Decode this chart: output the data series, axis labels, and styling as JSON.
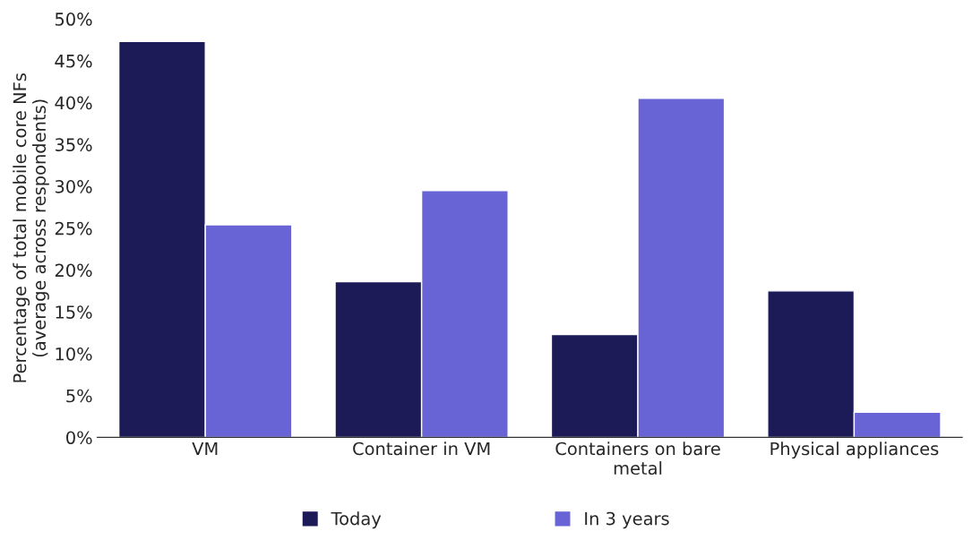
{
  "chart_data": {
    "type": "bar",
    "ylabel": "Percentage of total mobile core NFs\n(average across respondents)",
    "categories": [
      "VM",
      "Container in VM",
      "Containers on bare\nmetal",
      "Physical appliances"
    ],
    "series": [
      {
        "name": "Today",
        "color": "#1c1a57",
        "values": [
          47.3,
          18.6,
          12.3,
          17.5
        ]
      },
      {
        "name": "In 3 years",
        "color": "#6964d6",
        "values": [
          25.4,
          29.5,
          40.5,
          3.0
        ]
      }
    ],
    "ylim": [
      0,
      50
    ],
    "yticks": [
      {
        "value": 0,
        "label": "0%"
      },
      {
        "value": 5,
        "label": "5%"
      },
      {
        "value": 10,
        "label": "10%"
      },
      {
        "value": 15,
        "label": "15%"
      },
      {
        "value": 20,
        "label": "20%"
      },
      {
        "value": 25,
        "label": "25%"
      },
      {
        "value": 30,
        "label": "30%"
      },
      {
        "value": 35,
        "label": "35%"
      },
      {
        "value": 40,
        "label": "40%"
      },
      {
        "value": 45,
        "label": "45%"
      },
      {
        "value": 50,
        "label": "50%"
      }
    ],
    "grid": false,
    "legend": "bottom"
  }
}
